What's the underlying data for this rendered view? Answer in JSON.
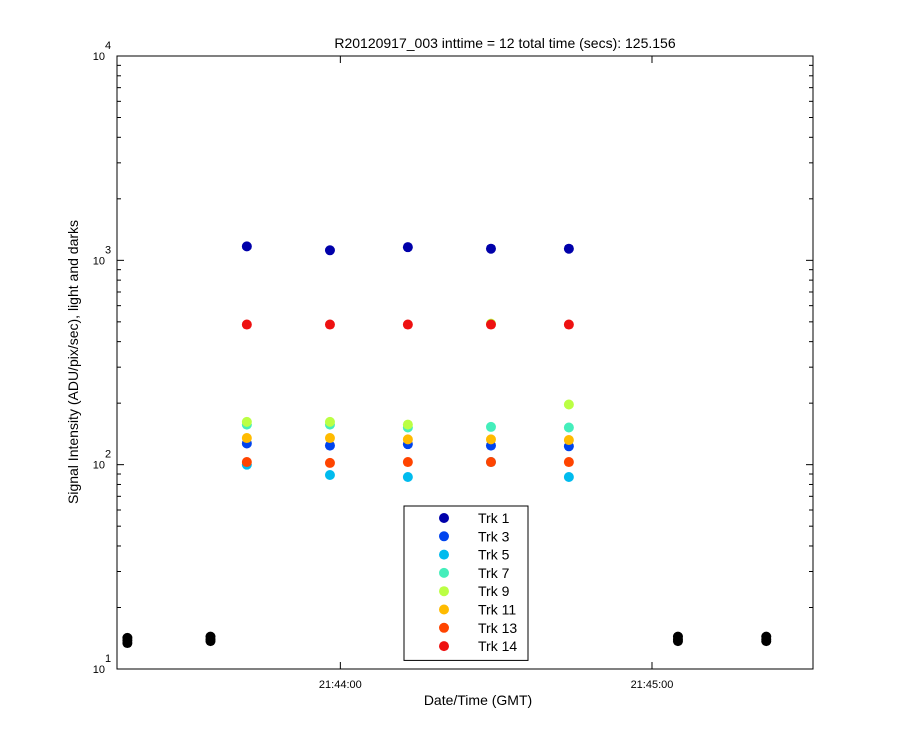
{
  "chart_data": {
    "type": "scatter",
    "title": "R20120917_003 inttime = 12 total time (secs): 125.156",
    "xlabel": "Date/Time (GMT)",
    "ylabel": "Signal Intensity (ADU/pix/sec), light and darks",
    "y_scale": "log",
    "ylim": [
      10,
      10000
    ],
    "y_ticks": [
      {
        "base": "10",
        "exp": "1"
      },
      {
        "base": "10",
        "exp": "2"
      },
      {
        "base": "10",
        "exp": "3"
      },
      {
        "base": "10",
        "exp": "4"
      }
    ],
    "xlim": [
      "21:43:17",
      "21:45:31"
    ],
    "x_ticks": [
      "21:44:00",
      "21:45:00"
    ],
    "legend_position": "bottom-center",
    "series": [
      {
        "name": "Trk 1",
        "color": "#0000aa",
        "x": [
          "21:43:42",
          "21:43:58",
          "21:44:13",
          "21:44:29",
          "21:44:44"
        ],
        "y": [
          1170,
          1120,
          1160,
          1140,
          1140
        ]
      },
      {
        "name": "Trk 3",
        "color": "#0044ee",
        "x": [
          "21:43:42",
          "21:43:58",
          "21:44:13",
          "21:44:29",
          "21:44:44"
        ],
        "y": [
          127,
          124,
          126,
          124,
          123
        ]
      },
      {
        "name": "Trk 5",
        "color": "#00bbee",
        "x": [
          "21:43:42",
          "21:43:58",
          "21:44:13",
          "21:44:29",
          "21:44:44"
        ],
        "y": [
          100,
          89,
          87,
          103,
          87
        ]
      },
      {
        "name": "Trk 7",
        "color": "#44eebb",
        "x": [
          "21:43:42",
          "21:43:58",
          "21:44:13",
          "21:44:29",
          "21:44:44"
        ],
        "y": [
          157,
          157,
          152,
          153,
          152
        ]
      },
      {
        "name": "Trk 9",
        "color": "#bbff44",
        "x": [
          "21:43:42",
          "21:43:58",
          "21:44:13",
          "21:44:29",
          "21:44:44"
        ],
        "y": [
          162,
          162,
          157,
          490,
          197
        ]
      },
      {
        "name": "Trk 11",
        "color": "#ffbb00",
        "x": [
          "21:43:42",
          "21:43:58",
          "21:44:13",
          "21:44:29",
          "21:44:44"
        ],
        "y": [
          135,
          135,
          133,
          133,
          132
        ]
      },
      {
        "name": "Trk 13",
        "color": "#ff4400",
        "x": [
          "21:43:42",
          "21:43:58",
          "21:44:13",
          "21:44:29",
          "21:44:44"
        ],
        "y": [
          103,
          102,
          103,
          103,
          103
        ]
      },
      {
        "name": "Trk 14",
        "color": "#ee1111",
        "x": [
          "21:43:42",
          "21:43:58",
          "21:44:13",
          "21:44:29",
          "21:44:44"
        ],
        "y": [
          485,
          485,
          485,
          485,
          485
        ]
      },
      {
        "color": "#000000",
        "x": [
          "21:43:19",
          "21:43:19",
          "21:43:19",
          "21:43:35",
          "21:43:35",
          "21:43:35",
          "21:45:05",
          "21:45:05",
          "21:45:05",
          "21:45:22",
          "21:45:22",
          "21:45:22"
        ],
        "y": [
          14.2,
          13.8,
          13.4,
          14.4,
          14.0,
          13.7,
          14.4,
          14.0,
          13.7,
          14.4,
          14.0,
          13.7
        ]
      }
    ]
  }
}
